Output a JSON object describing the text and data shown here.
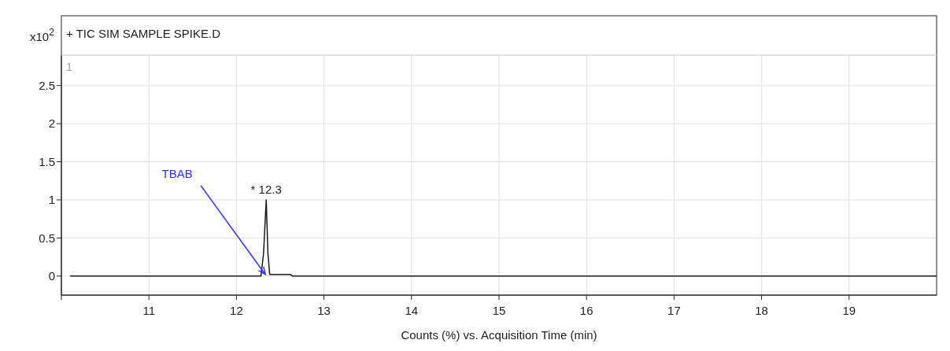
{
  "chart_data": {
    "type": "line",
    "title": "+ TIC SIM SAMPLE SPIKE.D",
    "xlabel": "Counts (%) vs. Acquisition Time (min)",
    "ylabel": "x10$^{2}$",
    "x": [
      10.1,
      12.28,
      12.31,
      12.34,
      12.36,
      12.38,
      12.62,
      12.64,
      20
    ],
    "series": [
      {
        "color": "#1a1a1a",
        "values": [
          0,
          0,
          0.3,
          1.0,
          0.3,
          0.02,
          0.02,
          0,
          0
        ]
      }
    ],
    "xlim": [
      10,
      20
    ],
    "xticks": [
      {
        "value": 10,
        "label": null
      },
      11,
      12,
      13,
      14,
      15,
      16,
      17,
      18,
      19
    ],
    "ylim": [
      -0.25,
      2.9
    ],
    "yticks": [
      0,
      0.5,
      1,
      1.5,
      2,
      2.5
    ],
    "grid": true,
    "annotations": [
      "1",
      {
        "text": "* 12.3",
        "x": 12.34,
        "y": 1.0
      },
      {
        "text": "TBAB",
        "x": 12.33,
        "y": 0
      }
    ]
  }
}
